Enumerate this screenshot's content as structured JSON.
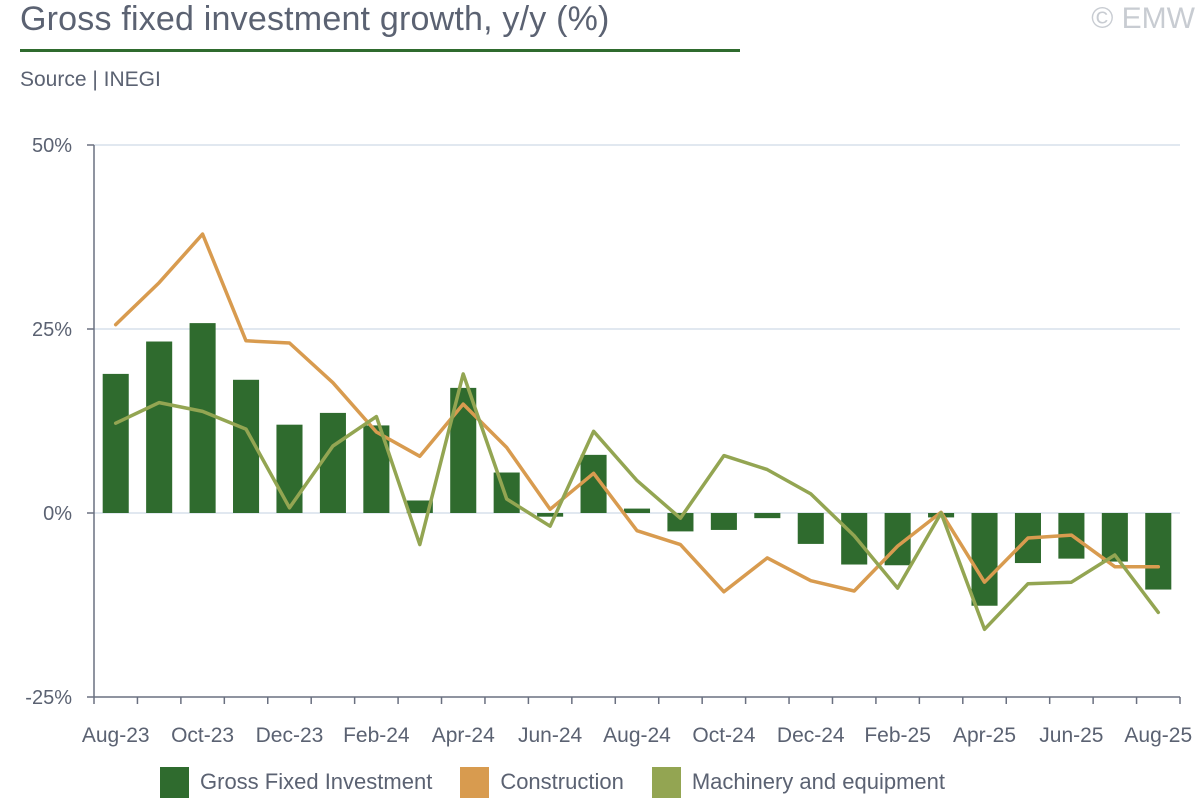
{
  "header": {
    "title": "Gross fixed investment growth, y/y (%)",
    "source": "Source | INEGI",
    "copyright": "© EMW"
  },
  "colors": {
    "bar": "#2f6b2e",
    "construction": "#d89b4f",
    "machinery": "#93a552",
    "axis": "#6a7080",
    "grid": "#d7e0ec",
    "title_rule": "#2f6b2e"
  },
  "chart_data": {
    "type": "bar",
    "title": "Gross fixed investment growth, y/y (%)",
    "ylim": [
      -25,
      50
    ],
    "yticks": [
      50,
      25,
      0,
      -25
    ],
    "ytick_labels": [
      "50%",
      "25%",
      "0%",
      "-25%"
    ],
    "grid": true,
    "legend_position": "bottom",
    "categories": [
      "Aug-23",
      "Sep-23",
      "Oct-23",
      "Nov-23",
      "Dec-23",
      "Jan-24",
      "Feb-24",
      "Mar-24",
      "Apr-24",
      "May-24",
      "Jun-24",
      "Jul-24",
      "Aug-24",
      "Sep-24",
      "Oct-24",
      "Nov-24",
      "Dec-24",
      "Jan-25",
      "Feb-25",
      "Mar-25",
      "Apr-25",
      "May-25",
      "Jun-25",
      "Jul-25",
      "Aug-25"
    ],
    "xtick_labels": [
      "Aug-23",
      "",
      "Oct-23",
      "",
      "Dec-23",
      "",
      "Feb-24",
      "",
      "Apr-24",
      "",
      "Jun-24",
      "",
      "Aug-24",
      "",
      "Oct-24",
      "",
      "Dec-24",
      "",
      "Feb-25",
      "",
      "Apr-25",
      "",
      "Jun-25",
      "",
      "Aug-25"
    ],
    "series": [
      {
        "name": "Gross Fixed Investment",
        "kind": "bar",
        "values": [
          18.9,
          23.3,
          25.8,
          18.1,
          12.0,
          13.6,
          11.9,
          1.7,
          17.0,
          5.5,
          -0.5,
          7.9,
          0.6,
          -2.5,
          -2.3,
          -0.7,
          -4.2,
          -7.0,
          -7.1,
          -0.6,
          -12.6,
          -6.8,
          -6.2,
          -6.6,
          -10.4
        ]
      },
      {
        "name": "Construction",
        "kind": "line",
        "values": [
          25.6,
          31.3,
          37.9,
          23.4,
          23.1,
          17.7,
          11.0,
          7.7,
          14.8,
          8.9,
          0.5,
          5.4,
          -2.4,
          -4.3,
          -10.7,
          -6.1,
          -9.2,
          -10.6,
          -4.5,
          0.1,
          -9.4,
          -3.4,
          -3.0,
          -7.3,
          -7.3
        ]
      },
      {
        "name": "Machinery and equipment",
        "kind": "line",
        "values": [
          12.2,
          15.0,
          13.8,
          11.4,
          0.7,
          9.1,
          13.1,
          -4.3,
          18.9,
          1.9,
          -1.8,
          11.1,
          4.4,
          -0.7,
          7.8,
          5.9,
          2.6,
          -3.1,
          -10.2,
          0.0,
          -15.8,
          -9.6,
          -9.4,
          -5.7,
          -13.5
        ]
      }
    ]
  }
}
